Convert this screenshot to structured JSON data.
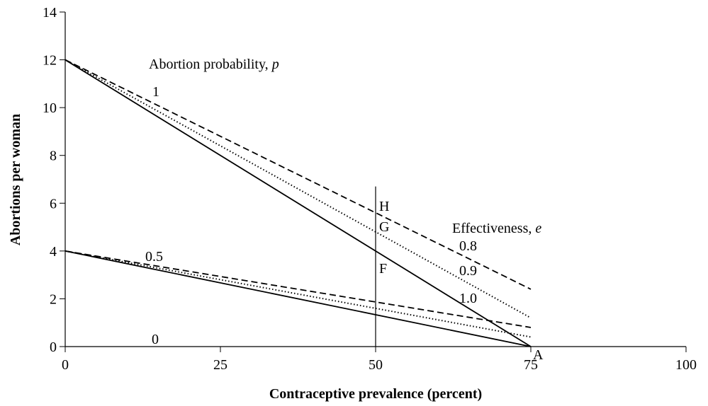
{
  "chart_data": {
    "type": "line",
    "xlabel": "Contraceptive prevalence (percent)",
    "ylabel": "Abortions per woman",
    "xlim": [
      0,
      100
    ],
    "xticks": [
      0,
      25,
      50,
      75,
      100
    ],
    "ylim": [
      0,
      14
    ],
    "yticks": [
      0,
      2,
      4,
      6,
      8,
      10,
      12,
      14
    ],
    "color": "#000000",
    "series": [
      {
        "style": "solid",
        "x": [
          0,
          75
        ],
        "values": [
          12,
          0
        ]
      },
      {
        "style": "dotted",
        "x": [
          0,
          75
        ],
        "values": [
          12,
          1.2
        ]
      },
      {
        "style": "dashed",
        "x": [
          0,
          75
        ],
        "values": [
          12,
          2.4
        ]
      },
      {
        "style": "solid",
        "x": [
          0,
          75
        ],
        "values": [
          4,
          0
        ]
      },
      {
        "style": "dotted",
        "x": [
          0,
          75
        ],
        "values": [
          4,
          0.4
        ]
      },
      {
        "style": "dashed",
        "x": [
          0,
          75
        ],
        "values": [
          4,
          0.8
        ]
      }
    ],
    "reference_line": {
      "x": 50,
      "y": [
        0,
        6.7
      ]
    },
    "annotations": [
      {
        "text": "Abortion probability, ",
        "var": "p"
      },
      {
        "text": "1"
      },
      {
        "text": "0.5"
      },
      {
        "text": "0"
      },
      {
        "text": "Effectiveness, ",
        "var": "e"
      },
      {
        "text": "0.8"
      },
      {
        "text": "0.9"
      },
      {
        "text": "1.0"
      },
      {
        "text": "H"
      },
      {
        "text": "G"
      },
      {
        "text": "F"
      },
      {
        "text": "A"
      }
    ]
  }
}
